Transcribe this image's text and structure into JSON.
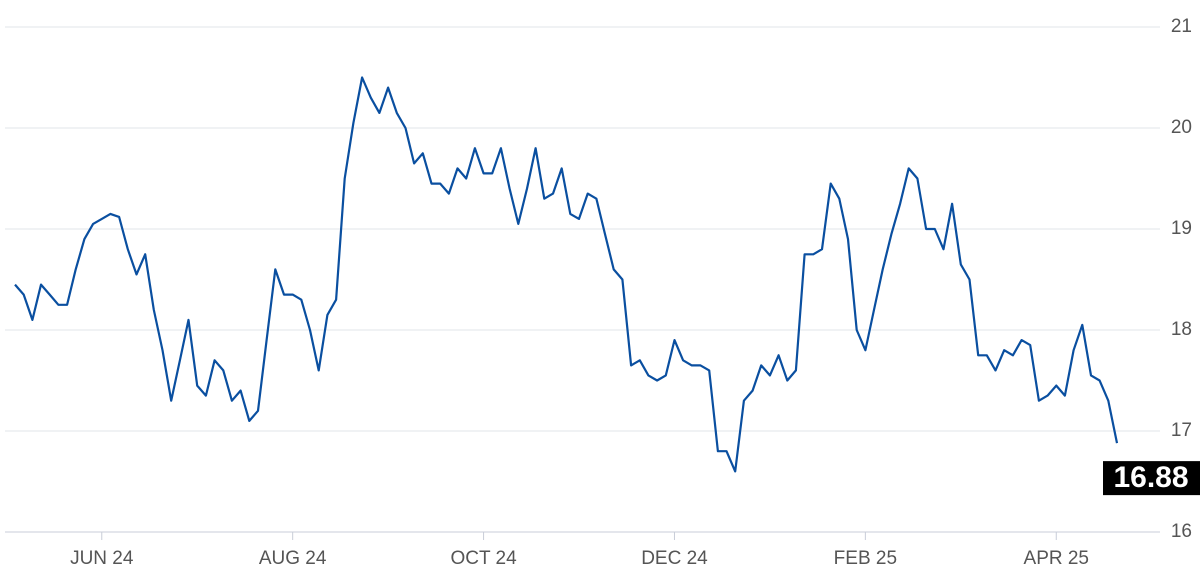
{
  "chart_data": {
    "type": "line",
    "color": "#0a4fa0",
    "grid": true,
    "ylim": [
      16,
      21
    ],
    "yticks": [
      16,
      17,
      18,
      19,
      20,
      21
    ],
    "categories": [
      null,
      null,
      null,
      null,
      null,
      null,
      null,
      null,
      null,
      null,
      "JUN 24",
      null,
      null,
      null,
      null,
      null,
      null,
      null,
      null,
      null,
      null,
      null,
      null,
      null,
      null,
      null,
      null,
      null,
      null,
      null,
      null,
      null,
      "AUG 24",
      null,
      null,
      null,
      null,
      null,
      null,
      null,
      null,
      null,
      null,
      null,
      null,
      null,
      null,
      null,
      null,
      null,
      null,
      null,
      null,
      null,
      "OCT 24",
      null,
      null,
      null,
      null,
      null,
      null,
      null,
      null,
      null,
      null,
      null,
      null,
      null,
      null,
      null,
      null,
      null,
      null,
      null,
      null,
      null,
      "DEC 24",
      null,
      null,
      null,
      null,
      null,
      null,
      null,
      null,
      null,
      null,
      null,
      null,
      null,
      null,
      null,
      null,
      null,
      null,
      null,
      null,
      null,
      "FEB 25",
      null,
      null,
      null,
      null,
      null,
      null,
      null,
      null,
      null,
      null,
      null,
      null,
      null,
      null,
      null,
      null,
      null,
      null,
      null,
      null,
      null,
      "APR 25",
      null,
      null,
      null,
      null,
      null,
      null,
      null
    ],
    "values": [
      18.45,
      18.35,
      18.1,
      18.45,
      18.35,
      18.25,
      18.25,
      18.6,
      18.9,
      19.05,
      19.1,
      19.15,
      19.12,
      18.8,
      18.55,
      18.75,
      18.2,
      17.8,
      17.3,
      17.7,
      18.1,
      17.45,
      17.35,
      17.7,
      17.6,
      17.3,
      17.4,
      17.1,
      17.2,
      17.9,
      18.6,
      18.35,
      18.35,
      18.3,
      18.0,
      17.6,
      18.15,
      18.3,
      19.5,
      20.05,
      20.5,
      20.3,
      20.15,
      20.4,
      20.15,
      20.0,
      19.65,
      19.75,
      19.45,
      19.45,
      19.35,
      19.6,
      19.5,
      19.8,
      19.55,
      19.55,
      19.8,
      19.4,
      19.05,
      19.4,
      19.8,
      19.3,
      19.35,
      19.6,
      19.15,
      19.1,
      19.35,
      19.3,
      18.95,
      18.6,
      18.5,
      17.65,
      17.7,
      17.55,
      17.5,
      17.55,
      17.9,
      17.7,
      17.65,
      17.65,
      17.6,
      16.8,
      16.8,
      16.6,
      17.3,
      17.4,
      17.65,
      17.55,
      17.75,
      17.5,
      17.6,
      18.75,
      18.75,
      18.8,
      19.45,
      19.3,
      18.9,
      18.0,
      17.8,
      18.2,
      18.6,
      18.95,
      19.25,
      19.6,
      19.5,
      19.0,
      19.0,
      18.8,
      19.25,
      18.65,
      18.5,
      17.75,
      17.75,
      17.6,
      17.8,
      17.75,
      17.9,
      17.85,
      17.3,
      17.35,
      17.45,
      17.35,
      17.8,
      18.05,
      17.55,
      17.5,
      17.3,
      16.88
    ]
  }
}
